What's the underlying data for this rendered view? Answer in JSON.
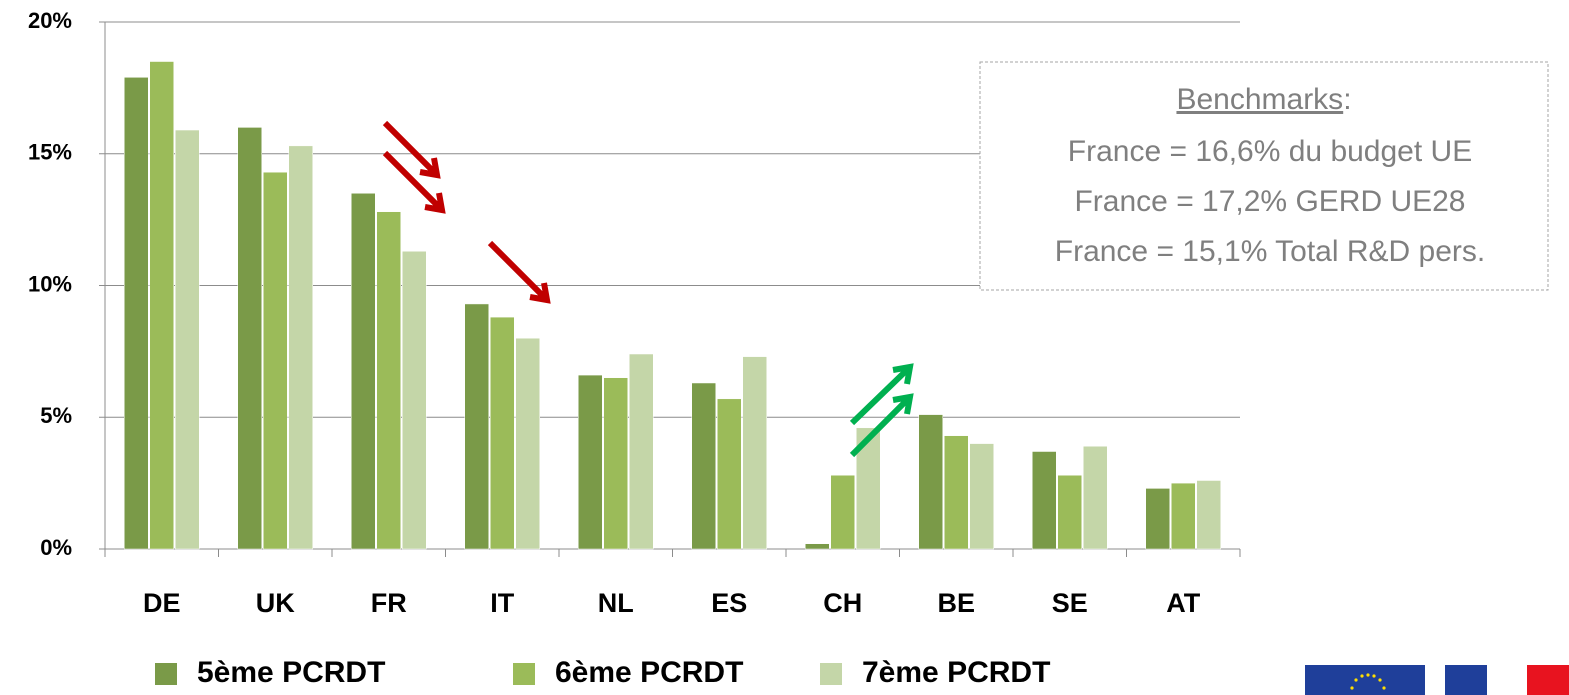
{
  "chart_data": {
    "type": "bar",
    "categories": [
      "DE",
      "UK",
      "FR",
      "IT",
      "NL",
      "ES",
      "CH",
      "BE",
      "SE",
      "AT"
    ],
    "series": [
      {
        "name": "5ème PCRDT",
        "color": "#7a9a48",
        "values": [
          17.9,
          16.0,
          13.5,
          9.3,
          6.6,
          6.3,
          0.2,
          5.1,
          3.7,
          2.3
        ]
      },
      {
        "name": "6ème PCRDT",
        "color": "#9bbb59",
        "values": [
          18.5,
          14.3,
          12.8,
          8.8,
          6.5,
          5.7,
          2.8,
          4.3,
          2.8,
          2.5
        ]
      },
      {
        "name": "7ème PCRDT",
        "color": "#c4d6a8",
        "values": [
          15.9,
          15.3,
          11.3,
          8.0,
          7.4,
          7.3,
          4.6,
          4.0,
          3.9,
          2.6
        ]
      }
    ],
    "ylim": [
      0,
      20
    ],
    "yticks": [
      {
        "value": 0,
        "label": "0%"
      },
      {
        "value": 5,
        "label": "5%"
      },
      {
        "value": 10,
        "label": "10%"
      },
      {
        "value": 15,
        "label": "15%"
      },
      {
        "value": 20,
        "label": "20%"
      }
    ],
    "grid": true,
    "legend": "bottom",
    "annotation": {
      "title": "Benchmarks",
      "title_suffix": ":",
      "lines": [
        "France = 16,6% du budget UE",
        "France = 17,2% GERD UE28",
        "France = 15,1% Total R&D pers."
      ]
    }
  }
}
